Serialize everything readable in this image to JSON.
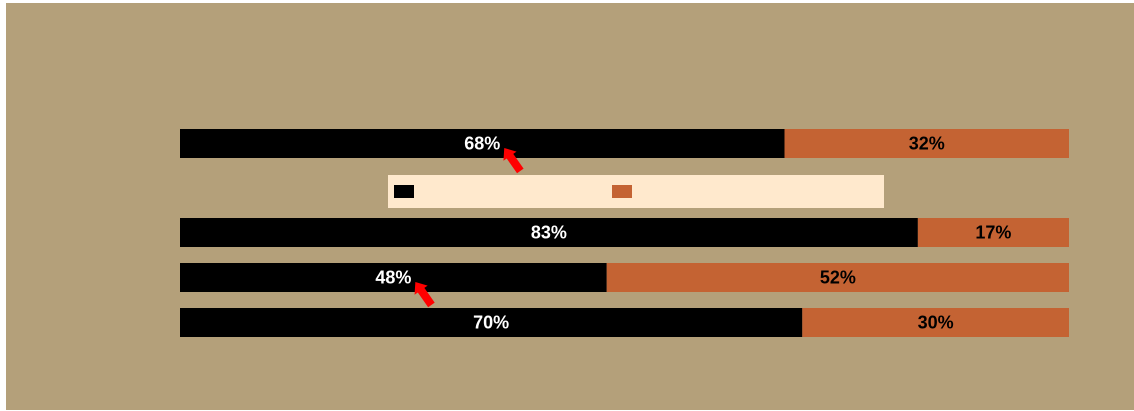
{
  "colors": {
    "background": "#b4a07a",
    "series_a": "#000000",
    "series_b": "#c46333",
    "legend_bg": "#ffe9cd",
    "arrow": "#ff0000",
    "label_on_a": "#ffffff",
    "label_on_b": "#000000"
  },
  "chart_data": {
    "type": "bar",
    "orientation": "horizontal",
    "stacked": true,
    "percent": true,
    "title": "",
    "xlabel": "",
    "ylabel": "",
    "xlim": [
      0,
      100
    ],
    "grid": false,
    "legend": {
      "placement": "between-rows",
      "entries": [
        "",
        ""
      ]
    },
    "rows": [
      {
        "values": [
          68,
          32
        ],
        "labels": [
          "68%",
          "32%"
        ],
        "arrow_on_first": true
      },
      {
        "values": [
          83,
          17
        ],
        "labels": [
          "83%",
          "17%"
        ],
        "arrow_on_first": false
      },
      {
        "values": [
          48,
          52
        ],
        "labels": [
          "48%",
          "52%"
        ],
        "arrow_on_first": true
      },
      {
        "values": [
          70,
          30
        ],
        "labels": [
          "70%",
          "30%"
        ],
        "arrow_on_first": false
      }
    ],
    "annotations": [
      {
        "type": "arrow",
        "row": 0,
        "points_to": "68%"
      },
      {
        "type": "arrow",
        "row": 2,
        "points_to": "48%"
      }
    ]
  }
}
